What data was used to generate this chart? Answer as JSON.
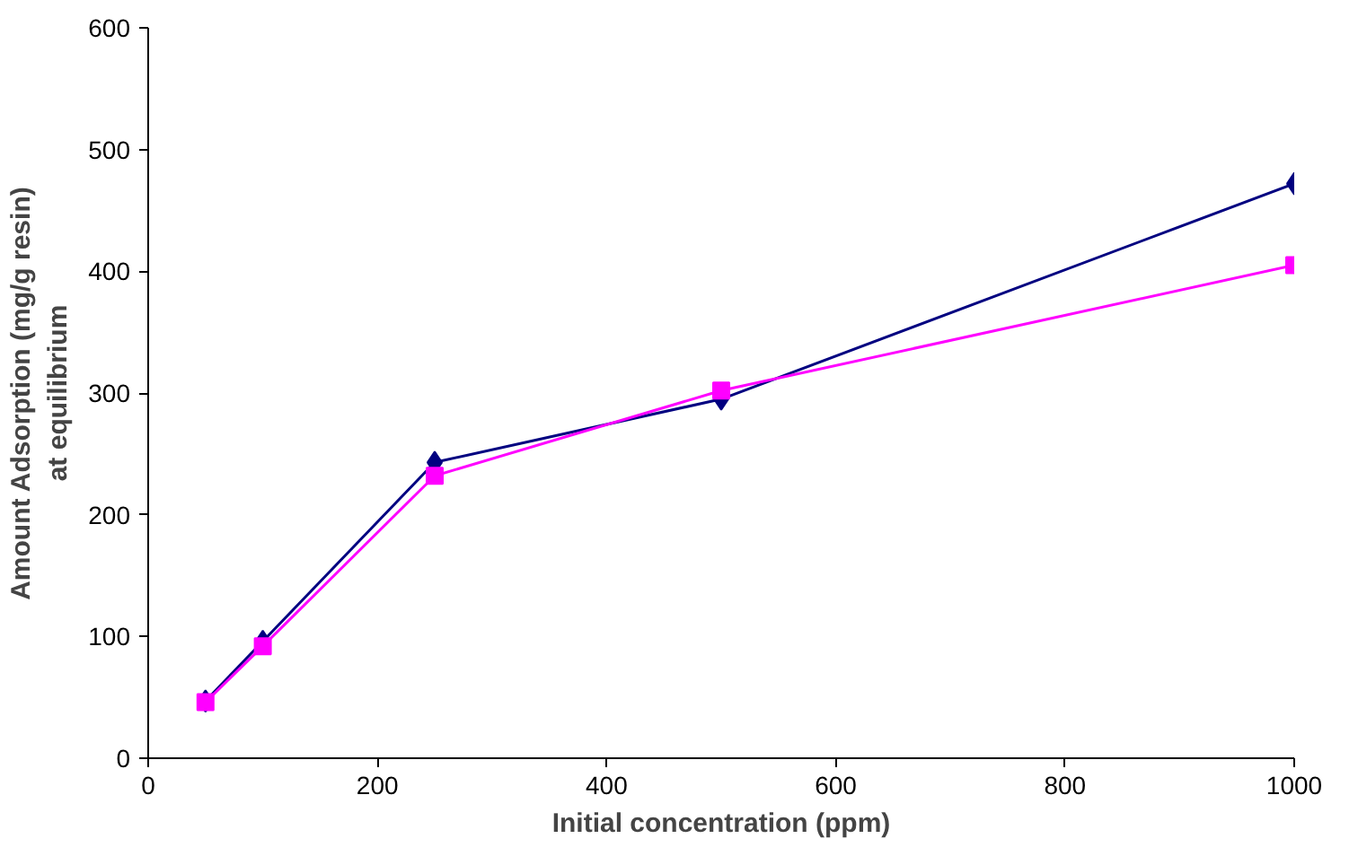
{
  "chart_data": {
    "type": "line",
    "xlabel": "Initial concentration (ppm)",
    "ylabel": "Amount Adsorption (mg/g resin)\nat equilibrium",
    "x": [
      50,
      100,
      250,
      500,
      1000
    ],
    "series": [
      {
        "color": "#000080",
        "marker": "diamond",
        "values": [
          47,
          96,
          243,
          295,
          472
        ]
      },
      {
        "color": "#ff00ff",
        "marker": "square",
        "values": [
          46,
          92,
          232,
          302,
          405
        ]
      }
    ],
    "xlim": [
      0,
      1000
    ],
    "xticks": [
      0,
      200,
      400,
      600,
      800,
      1000
    ],
    "ylim": [
      0,
      600
    ],
    "yticks": [
      0,
      100,
      200,
      300,
      400,
      500,
      600
    ],
    "grid": false
  }
}
